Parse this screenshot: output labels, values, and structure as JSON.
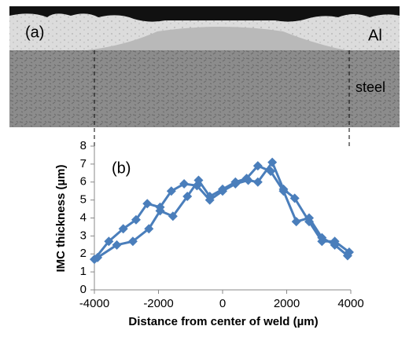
{
  "micrograph": {
    "label": "(a)",
    "top_label": "Al",
    "bottom_label": "steel"
  },
  "chart_data": {
    "type": "line",
    "annotation": "(b)",
    "x_label": "Distance from center of weld (µm)",
    "y_label": "IMC thickness (µm)",
    "xlim": [
      -4000,
      4000
    ],
    "xticks": [
      -4000,
      -2000,
      0,
      2000,
      4000
    ],
    "ylim": [
      0,
      8
    ],
    "yticks": [
      0,
      1,
      2,
      3,
      4,
      5,
      6,
      7,
      8
    ],
    "grid": false,
    "marker": "diamond",
    "series": [
      {
        "color": "#4a7ebb",
        "x": [
          -4000,
          -3550,
          -3100,
          -2700,
          -2350,
          -1950,
          -1600,
          -1200,
          -800,
          -400,
          0,
          400,
          800,
          1100,
          1550,
          1900,
          2250,
          2700,
          3100,
          3500,
          3950
        ],
        "values": [
          1.7,
          2.7,
          3.4,
          3.9,
          4.8,
          4.6,
          5.5,
          5.9,
          5.8,
          5.0,
          5.5,
          5.9,
          6.1,
          6.0,
          7.1,
          5.6,
          5.1,
          3.8,
          2.7,
          2.7,
          2.1
        ]
      },
      {
        "color": "#4a7ebb",
        "x": [
          -3900,
          -3300,
          -2800,
          -2300,
          -1950,
          -1550,
          -1100,
          -750,
          -400,
          0,
          400,
          750,
          1100,
          1500,
          1900,
          2300,
          2700,
          3100,
          3500,
          3900
        ],
        "values": [
          1.8,
          2.5,
          2.7,
          3.4,
          4.4,
          4.1,
          5.2,
          6.1,
          5.2,
          5.6,
          6.0,
          6.2,
          6.9,
          6.6,
          5.5,
          3.8,
          4.0,
          2.9,
          2.5,
          1.9
        ]
      }
    ]
  }
}
